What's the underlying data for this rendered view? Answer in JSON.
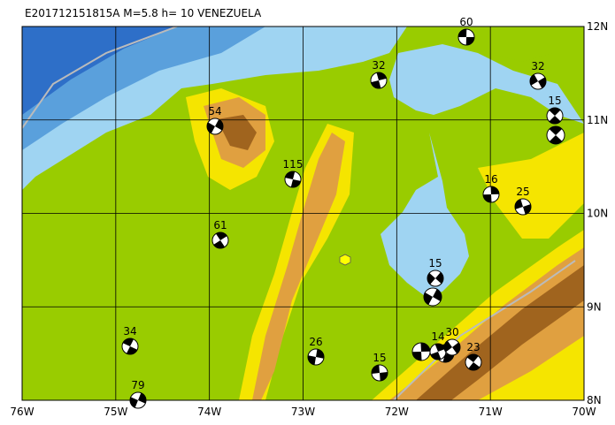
{
  "header": {
    "title": "E201712151815A  M=5.8  h= 10  VENEZUELA"
  },
  "axes": {
    "x_labels": [
      "76W",
      "75W",
      "74W",
      "73W",
      "72W",
      "71W",
      "70W"
    ],
    "y_labels": [
      "12N",
      "11N",
      "10N",
      "9N",
      "8N"
    ]
  },
  "events": [
    {
      "label": "60"
    },
    {
      "label": "32"
    },
    {
      "label": "32"
    },
    {
      "label": "15"
    },
    {
      "label": "54"
    },
    {
      "label": "115"
    },
    {
      "label": "16"
    },
    {
      "label": "25"
    },
    {
      "label": "61"
    },
    {
      "label": "15"
    },
    {
      "label": "34"
    },
    {
      "label": "26"
    },
    {
      "label": "15"
    },
    {
      "label": "14"
    },
    {
      "label": "30"
    },
    {
      "label": "23"
    },
    {
      "label": "79"
    }
  ]
}
